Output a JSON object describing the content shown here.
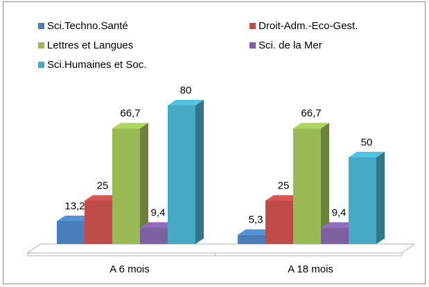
{
  "chart_data": {
    "type": "bar3d",
    "categories": [
      "A 6 mois",
      "A 18 mois"
    ],
    "series": [
      {
        "name": "Sci.Techno.Santé",
        "color": "#4a7ebb",
        "values": [
          13.2,
          5.3
        ],
        "value_labels": [
          "13,2",
          "5,3"
        ]
      },
      {
        "name": "Droit-Adm.-Eco-Gest.",
        "color": "#be4b48",
        "values": [
          25,
          25
        ],
        "value_labels": [
          "25",
          "25"
        ]
      },
      {
        "name": "Lettres et Langues",
        "color": "#98b954",
        "values": [
          66.7,
          66.7
        ],
        "value_labels": [
          "66,7",
          "66,7"
        ]
      },
      {
        "name": "Sci. de la Mer",
        "color": "#7d60a0",
        "values": [
          9.4,
          9.4
        ],
        "value_labels": [
          "9,4",
          "9,4"
        ]
      },
      {
        "name": "Sci.Humaines et Soc.",
        "color": "#46aac5",
        "values": [
          80,
          50
        ],
        "value_labels": [
          "80",
          "50"
        ]
      }
    ]
  }
}
